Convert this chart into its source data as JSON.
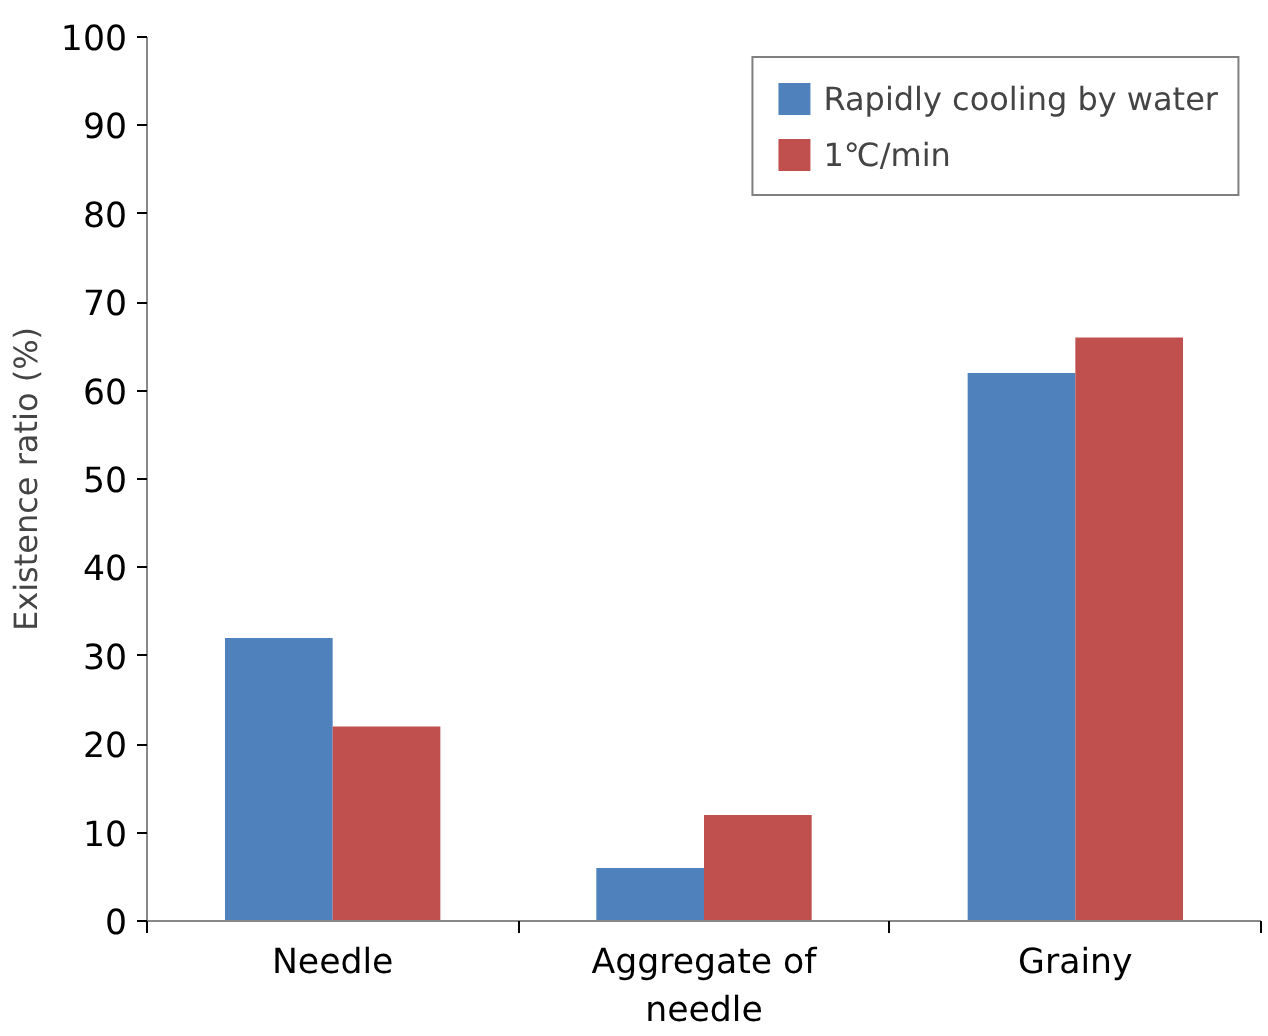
{
  "chart_data": {
    "type": "bar",
    "ylabel": "Existence ratio (%)",
    "categories": [
      "Needle",
      "Aggregate of needle",
      "Grainy"
    ],
    "series": [
      {
        "name": "Rapidly cooling by water",
        "color": "#4f81bd",
        "values": [
          32,
          6,
          62
        ]
      },
      {
        "name": "1℃/min",
        "color": "#c0504d",
        "values": [
          22,
          12,
          66
        ]
      }
    ],
    "ylim": [
      0,
      100
    ],
    "yticks": [
      0,
      10,
      20,
      30,
      40,
      50,
      60,
      70,
      80,
      90,
      100
    ],
    "grid": false,
    "legend": "top right"
  }
}
